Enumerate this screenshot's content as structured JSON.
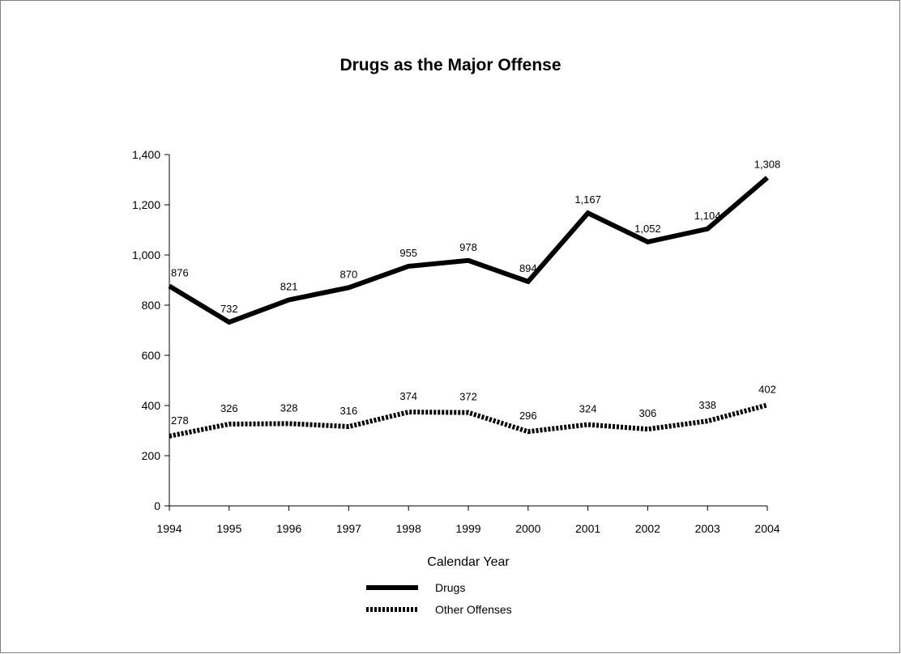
{
  "chart_data": {
    "type": "line",
    "title": "Drugs as the Major Offense",
    "xlabel": "Calendar Year",
    "ylabel": "",
    "ylim": [
      0,
      1400
    ],
    "yticks": [
      0,
      200,
      400,
      600,
      800,
      1000,
      1200,
      1400
    ],
    "ytick_labels": [
      "0",
      "200",
      "400",
      "600",
      "800",
      "1,000",
      "1,200",
      "1,400"
    ],
    "x": [
      "1994",
      "1995",
      "1996",
      "1997",
      "1998",
      "1999",
      "2000",
      "2001",
      "2002",
      "2003",
      "2004"
    ],
    "grid": false,
    "legend_position": "bottom",
    "series": [
      {
        "name": "Drugs",
        "style": "solid",
        "color": "#000000",
        "values": [
          876,
          732,
          821,
          870,
          955,
          978,
          894,
          1167,
          1052,
          1104,
          1308
        ],
        "labels": [
          "876",
          "732",
          "821",
          "870",
          "955",
          "978",
          "894",
          "1,167",
          "1,052",
          "1,104",
          "1,308"
        ]
      },
      {
        "name": "Other Offenses",
        "style": "dotted",
        "color": "#000000",
        "values": [
          278,
          326,
          328,
          316,
          374,
          372,
          296,
          324,
          306,
          338,
          402
        ],
        "labels": [
          "278",
          "326",
          "328",
          "316",
          "374",
          "372",
          "296",
          "324",
          "306",
          "338",
          "402"
        ]
      }
    ]
  }
}
